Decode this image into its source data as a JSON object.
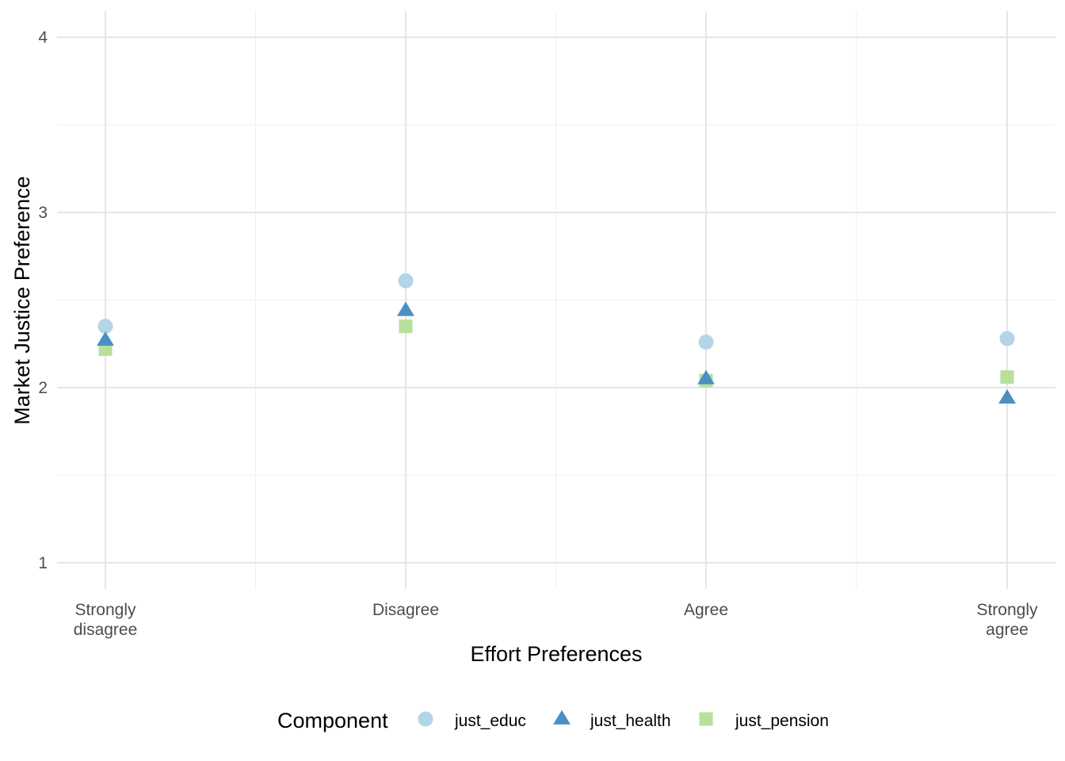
{
  "chart_data": {
    "type": "scatter",
    "title": "",
    "xlabel": "Effort Preferences",
    "ylabel": "Market Justice Preference",
    "categories": [
      "Strongly\ndisagree",
      "Disagree",
      "Agree",
      "Strongly\nagree"
    ],
    "ylim": [
      0.85,
      4.15
    ],
    "yticks": [
      1,
      2,
      3,
      4
    ],
    "grid": true,
    "legend": {
      "title": "Component",
      "position": "bottom"
    },
    "series": [
      {
        "name": "just_educ",
        "shape": "circle",
        "color": "#b4d4e8",
        "values": [
          2.35,
          2.61,
          2.26,
          2.28
        ]
      },
      {
        "name": "just_health",
        "shape": "triangle",
        "color": "#4a90c4",
        "values": [
          2.27,
          2.44,
          2.05,
          1.94
        ]
      },
      {
        "name": "just_pension",
        "shape": "square",
        "color": "#b9e09a",
        "values": [
          2.22,
          2.35,
          2.04,
          2.06
        ]
      }
    ]
  }
}
